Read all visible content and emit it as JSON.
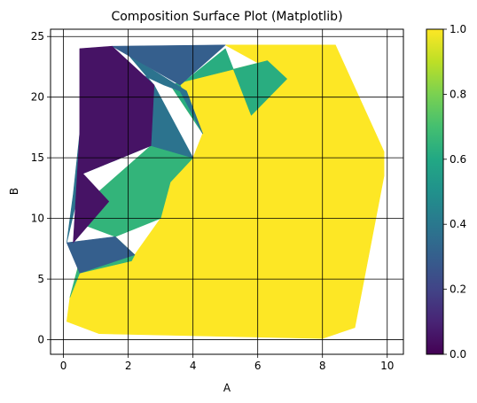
{
  "chart_data": {
    "type": "heatmap",
    "title": "Composition Surface Plot (Matplotlib)",
    "xlabel": "A",
    "ylabel": "B",
    "xlim": [
      -0.4,
      10.5
    ],
    "ylim": [
      -1.2,
      25.6
    ],
    "xticks": [
      0,
      2,
      4,
      6,
      8,
      10
    ],
    "yticks": [
      0,
      5,
      10,
      15,
      20,
      25
    ],
    "grid": true,
    "colorbar": {
      "min": 0.0,
      "max": 1.0,
      "ticks": [
        "0.0",
        "0.2",
        "0.4",
        "0.6",
        "0.8",
        "1.0"
      ],
      "colormap": "viridis"
    },
    "colors": {
      "high": "#fde725",
      "green": "#35b779",
      "teal": "#21918c",
      "blue": "#31688e",
      "navy": "#3b528b",
      "purple": "#440154"
    },
    "regions": [
      {
        "value": 1.0,
        "points": [
          [
            0.1,
            1.5
          ],
          [
            1.1,
            0.5
          ],
          [
            8.0,
            0.1
          ],
          [
            9.0,
            1.0
          ],
          [
            9.9,
            13.5
          ],
          [
            9.9,
            15.5
          ],
          [
            8.4,
            24.3
          ],
          [
            5.0,
            24.3
          ],
          [
            6.9,
            21.5
          ],
          [
            6.3,
            23.0
          ],
          [
            3.3,
            21.0
          ],
          [
            4.3,
            17.0
          ],
          [
            4.0,
            15.0
          ],
          [
            3.3,
            13.0
          ],
          [
            3.0,
            10.0
          ],
          [
            2.2,
            7.0
          ],
          [
            1.6,
            8.5
          ],
          [
            0.6,
            7.5
          ],
          [
            0.2,
            3.5
          ]
        ]
      },
      {
        "value": 0.65,
        "points": [
          [
            0.2,
            3.5
          ],
          [
            0.6,
            7.5
          ],
          [
            1.6,
            8.5
          ],
          [
            2.2,
            7.0
          ],
          [
            2.1,
            6.5
          ],
          [
            0.5,
            5.5
          ]
        ]
      },
      {
        "value": 0.65,
        "points": [
          [
            1.6,
            8.5
          ],
          [
            3.0,
            10.0
          ],
          [
            3.3,
            13.0
          ],
          [
            4.0,
            15.0
          ],
          [
            2.7,
            16.0
          ],
          [
            1.0,
            12.0
          ],
          [
            0.6,
            9.5
          ]
        ]
      },
      {
        "value": 0.62,
        "points": [
          [
            4.3,
            17.0
          ],
          [
            3.3,
            21.0
          ],
          [
            6.3,
            23.0
          ],
          [
            6.9,
            21.5
          ],
          [
            5.8,
            18.5
          ],
          [
            5.0,
            24.0
          ],
          [
            3.6,
            21.0
          ]
        ]
      },
      {
        "value": 0.38,
        "points": [
          [
            0.1,
            8.0
          ],
          [
            0.6,
            13.7
          ],
          [
            2.7,
            16.0
          ],
          [
            4.0,
            15.0
          ],
          [
            2.8,
            21.0
          ],
          [
            2.0,
            23.5
          ],
          [
            3.8,
            20.5
          ],
          [
            4.3,
            17.0
          ],
          [
            3.6,
            20.5
          ],
          [
            3.1,
            21.0
          ],
          [
            2.3,
            22.0
          ],
          [
            1.5,
            24.2
          ],
          [
            0.6,
            21.0
          ],
          [
            0.5,
            17.0
          ],
          [
            0.3,
            12.0
          ]
        ]
      },
      {
        "value": 0.3,
        "points": [
          [
            0.1,
            8.0
          ],
          [
            1.6,
            8.5
          ],
          [
            2.2,
            7.0
          ],
          [
            0.5,
            5.5
          ]
        ]
      },
      {
        "value": 0.3,
        "points": [
          [
            1.5,
            24.2
          ],
          [
            5.0,
            24.3
          ],
          [
            3.6,
            21.0
          ]
        ]
      },
      {
        "value": 0.05,
        "points": [
          [
            0.5,
            24.0
          ],
          [
            1.5,
            24.2
          ],
          [
            2.8,
            21.0
          ],
          [
            2.7,
            16.0
          ],
          [
            0.6,
            13.7
          ],
          [
            1.4,
            11.4
          ],
          [
            0.3,
            8.0
          ],
          [
            0.5,
            17.0
          ]
        ]
      }
    ]
  }
}
